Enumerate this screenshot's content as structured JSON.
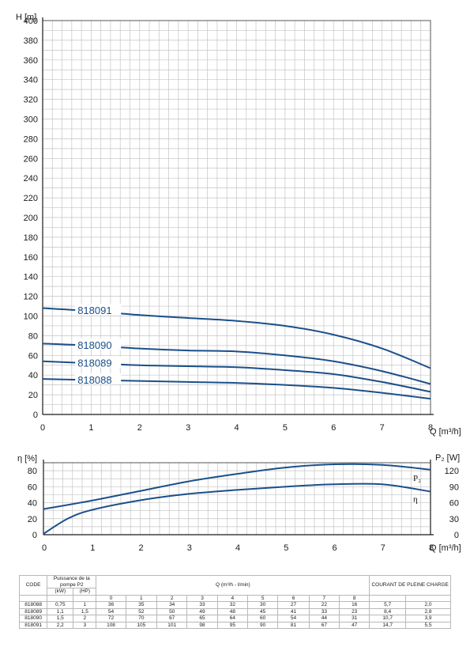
{
  "chart_data": [
    {
      "type": "line",
      "xlabel": "Q [m³/h]",
      "ylabel": "H [m]",
      "xlim": [
        0,
        8
      ],
      "ylim": [
        0,
        400
      ],
      "xticks": [
        0,
        1,
        2,
        3,
        4,
        5,
        6,
        7,
        8
      ],
      "yticks": [
        0,
        20,
        40,
        60,
        80,
        100,
        120,
        140,
        160,
        180,
        200,
        220,
        240,
        260,
        280,
        300,
        320,
        340,
        360,
        380,
        400
      ],
      "grid": true,
      "x": [
        0,
        1,
        2,
        3,
        4,
        5,
        6,
        7,
        8
      ],
      "series": [
        {
          "name": "818088",
          "values": [
            36,
            35,
            34,
            33,
            32,
            30,
            27,
            22,
            16
          ]
        },
        {
          "name": "818089",
          "values": [
            54,
            52,
            50,
            49,
            48,
            45,
            41,
            33,
            23
          ]
        },
        {
          "name": "818090",
          "values": [
            72,
            70,
            67,
            65,
            64,
            60,
            54,
            44,
            31
          ]
        },
        {
          "name": "818091",
          "values": [
            108,
            105,
            101,
            98,
            95,
            90,
            81,
            67,
            47
          ]
        }
      ]
    },
    {
      "type": "line",
      "xlabel": "Q [m³/h]",
      "ylabel": "η [%]",
      "ylabel_right": "P₂ [W]",
      "xlim": [
        0,
        8
      ],
      "ylim": [
        0,
        90
      ],
      "ylim_right": [
        0,
        135
      ],
      "xticks": [
        0,
        1,
        2,
        3,
        4,
        5,
        6,
        7,
        8
      ],
      "yticks": [
        0,
        20,
        40,
        60,
        80
      ],
      "yticks_right": [
        0,
        30,
        60,
        90,
        120
      ],
      "grid": true,
      "series": [
        {
          "name": "P₂",
          "axis": "right",
          "x": [
            0,
            1,
            2,
            3,
            4,
            5,
            6,
            7,
            8
          ],
          "values": [
            48,
            64,
            82,
            100,
            114,
            126,
            132,
            131,
            122
          ]
        },
        {
          "name": "η",
          "axis": "left",
          "x": [
            0,
            0.5,
            1,
            2,
            3,
            4,
            5,
            6,
            7,
            8
          ],
          "values": [
            1,
            20,
            31,
            43,
            51,
            56,
            60,
            63,
            63,
            54
          ]
        }
      ]
    }
  ],
  "table": {
    "code_header": "CODE",
    "power_header": "Puissance de la pompe P2",
    "kw_header": "(kW)",
    "hp_header": "(HP)",
    "q_header": "Q (m³/h - l/min)",
    "q_values": [
      "0",
      "1",
      "2",
      "3",
      "4",
      "5",
      "6",
      "7",
      "8"
    ],
    "current_header": "COURANT DE PLEINE CHARGE",
    "rows": [
      {
        "code": "818088",
        "kw": "0,75",
        "hp": "1",
        "h": [
          "36",
          "35",
          "34",
          "33",
          "32",
          "30",
          "27",
          "22",
          "16"
        ],
        "c1": "5,7",
        "c2": "2,0"
      },
      {
        "code": "818089",
        "kw": "1,1",
        "hp": "1,5",
        "h": [
          "54",
          "52",
          "50",
          "49",
          "48",
          "45",
          "41",
          "33",
          "23"
        ],
        "c1": "8,4",
        "c2": "2,8"
      },
      {
        "code": "818090",
        "kw": "1,5",
        "hp": "2",
        "h": [
          "72",
          "70",
          "67",
          "65",
          "64",
          "60",
          "54",
          "44",
          "31"
        ],
        "c1": "10,7",
        "c2": "3,9"
      },
      {
        "code": "818091",
        "kw": "2,2",
        "hp": "3",
        "h": [
          "108",
          "105",
          "101",
          "98",
          "95",
          "90",
          "81",
          "67",
          "47"
        ],
        "c1": "14,7",
        "c2": "5,5"
      }
    ]
  },
  "colors": {
    "curve": "#1b4f8a",
    "grid": "#c4c4c4",
    "axis": "#1a1a1a"
  }
}
